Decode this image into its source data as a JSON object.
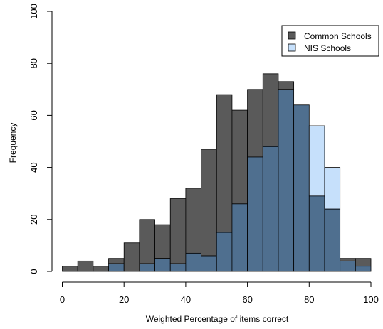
{
  "chart_data": {
    "type": "bar",
    "subtype": "overlapping-histogram",
    "title": "",
    "xlabel": "Weighted Percentage of items correct",
    "ylabel": "Frequency",
    "xlim": [
      0,
      100
    ],
    "ylim": [
      0,
      100
    ],
    "x_ticks": [
      0,
      20,
      40,
      60,
      80,
      100
    ],
    "y_ticks": [
      0,
      20,
      40,
      60,
      80,
      100
    ],
    "bin_edges": [
      0,
      5,
      10,
      15,
      20,
      25,
      30,
      35,
      40,
      45,
      50,
      55,
      60,
      65,
      70,
      75,
      80,
      85,
      90,
      95,
      100
    ],
    "grid": false,
    "legend_position": "top-right",
    "series": [
      {
        "name": "Common Schools",
        "color": "#5a5a5a",
        "values": [
          2,
          4,
          2,
          5,
          11,
          20,
          18,
          28,
          32,
          47,
          68,
          62,
          70,
          76,
          73,
          64,
          29,
          24,
          5,
          5
        ]
      },
      {
        "name": "NIS Schools",
        "color": "#c6e0fb",
        "values": [
          0,
          0,
          0,
          3,
          0,
          3,
          5,
          3,
          7,
          6,
          15,
          26,
          44,
          48,
          70,
          64,
          56,
          40,
          4,
          2
        ]
      }
    ],
    "overlap_color": "#4f6f8f"
  }
}
